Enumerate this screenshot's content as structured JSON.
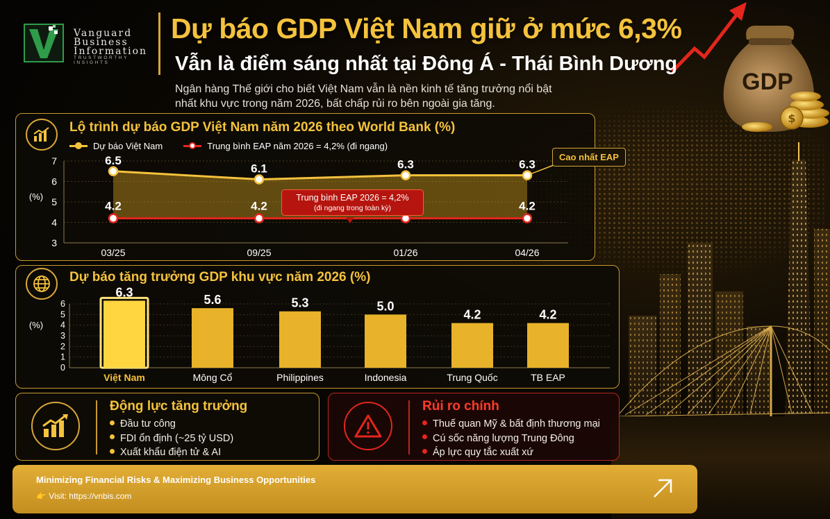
{
  "header": {
    "logo_line1": "Vanguard",
    "logo_line2": "Business",
    "logo_line3": "Information",
    "logo_tagline": "TRUSTWORTHY INSIGHTS",
    "title": "Dự báo GDP Việt Nam giữ ở mức 6,3%",
    "subtitle": "Vẫn là điểm sáng nhất tại Đông Á - Thái Bình Dương",
    "intro": "Ngân hàng Thế giới cho biết Việt Nam vẫn là nền kinh tế tăng trưởng nổi bật nhất khu vực trong năm 2026, bất chấp rủi ro bên ngoài gia tăng.",
    "bag_label": "GDP"
  },
  "line_card": {
    "title": "Lộ trình dự báo GDP Việt Nam năm 2026 theo World Bank (%)",
    "legend_vn": "Dự báo Việt Nam",
    "legend_eap": "Trung bình EAP năm 2026 = 4,2% (đi ngang)",
    "callout_top": "Cao nhất EAP",
    "callout_eap_line1": "Trung bình EAP 2026 = 4,2%",
    "callout_eap_line2": "(đi ngang trong toàn kỳ)"
  },
  "bar_card": {
    "title": "Dự báo tăng trưởng GDP khu vực năm 2026 (%)"
  },
  "chart_data": [
    {
      "type": "line",
      "title": "Lộ trình dự báo GDP Việt Nam năm 2026 theo World Bank (%)",
      "ylabel": "(%)",
      "ylim": [
        3,
        7
      ],
      "yticks": [
        "3",
        "4",
        "5",
        "6",
        "7"
      ],
      "categories": [
        "03/25",
        "09/25",
        "01/26",
        "04/26"
      ],
      "series": [
        {
          "name": "Dự báo Việt Nam",
          "values": [
            6.5,
            6.1,
            6.3,
            6.3
          ],
          "labels": [
            "6.5",
            "6.1",
            "6.3",
            "6.3"
          ],
          "color": "#f4c23d"
        },
        {
          "name": "Trung bình EAP năm 2026 = 4,2% (đi ngang)",
          "values": [
            4.2,
            4.2,
            4.2,
            4.2
          ],
          "labels": [
            "4.2",
            "4.2",
            "4.2",
            "4.2"
          ],
          "color": "#e4261c"
        }
      ],
      "grid": true,
      "legend": "top-left"
    },
    {
      "type": "bar",
      "title": "Dự báo tăng trưởng GDP khu vực năm 2026 (%)",
      "ylabel": "(%)",
      "ylim": [
        0,
        6
      ],
      "yticks": [
        "0",
        "1",
        "2",
        "3",
        "4",
        "5",
        "6"
      ],
      "categories": [
        "Việt Nam",
        "Mông Cổ",
        "Philippines",
        "Indonesia",
        "Trung Quốc",
        "TB EAP"
      ],
      "values": [
        6.3,
        5.6,
        5.3,
        5.0,
        4.2,
        4.2
      ],
      "labels": [
        "6.3",
        "5.6",
        "5.3",
        "5.0",
        "4.2",
        "4.2"
      ],
      "highlight_index": 0,
      "bar_color": "#e8b32a",
      "highlight_color": "#ffd640",
      "grid": true
    }
  ],
  "drivers": {
    "title": "Động lực tăng trưởng",
    "items": [
      "Đầu tư công",
      "FDI ổn định (~25 tỷ USD)",
      "Xuất khẩu điện tử & AI"
    ]
  },
  "risks": {
    "title": "Rủi ro chính",
    "items": [
      "Thuế quan Mỹ & bất định thương mại",
      "Cú sốc năng lượng Trung Đông",
      "Áp lực quy tắc xuất xứ"
    ]
  },
  "footer": {
    "line1": "Minimizing Financial Risks & Maximizing Business Opportunities",
    "line2": "👉 Visit: https://vnbis.com"
  }
}
